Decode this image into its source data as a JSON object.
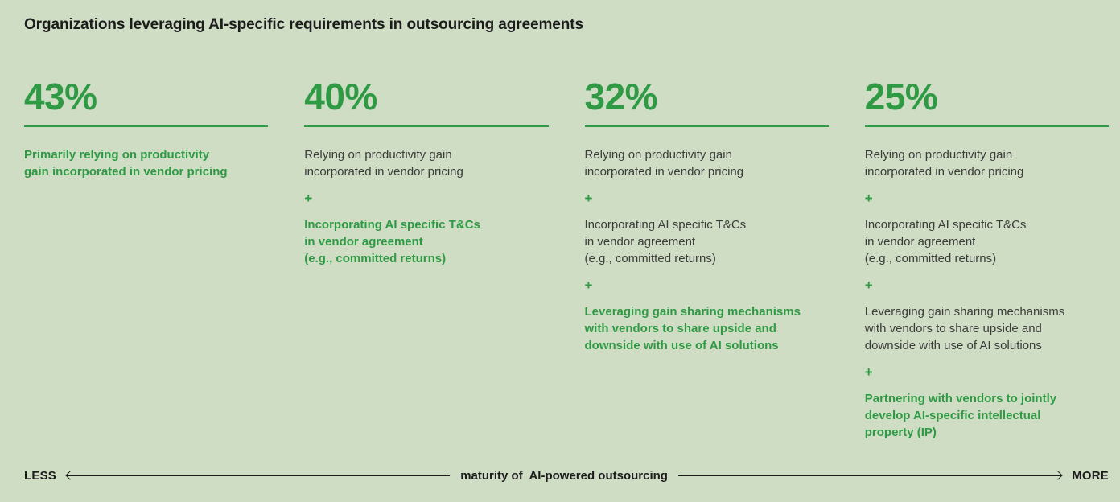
{
  "title": "Organizations leveraging AI-specific requirements in outsourcing agreements",
  "plus": "+",
  "colors": {
    "background": "#cfddc5",
    "accent_green": "#2f9a44",
    "text_dark": "#1c1c1c",
    "text_body": "#3c3c3a"
  },
  "columns": [
    {
      "percent": "43%",
      "items": [
        {
          "text": "Primarily relying on productivity\ngain incorporated in vendor pricing",
          "style": "green-bold"
        }
      ]
    },
    {
      "percent": "40%",
      "items": [
        {
          "text": "Relying on productivity gain\nincorporated in vendor pricing",
          "style": "plain"
        },
        {
          "text": "Incorporating AI specific T&Cs\nin vendor agreement\n(e.g., committed returns)",
          "style": "green-bold"
        }
      ]
    },
    {
      "percent": "32%",
      "items": [
        {
          "text": "Relying on productivity gain\nincorporated in vendor pricing",
          "style": "plain"
        },
        {
          "text": "Incorporating AI specific T&Cs\nin vendor agreement\n(e.g., committed returns)",
          "style": "plain"
        },
        {
          "text": "Leveraging gain sharing mechanisms\nwith vendors to share upside and\ndownside with use of AI solutions",
          "style": "green-bold"
        }
      ]
    },
    {
      "percent": "25%",
      "items": [
        {
          "text": "Relying on productivity gain\nincorporated in vendor pricing",
          "style": "plain"
        },
        {
          "text": "Incorporating AI specific T&Cs\nin vendor agreement\n(e.g., committed returns)",
          "style": "plain"
        },
        {
          "text": "Leveraging gain sharing mechanisms\nwith vendors to share upside and\ndownside with use of AI solutions",
          "style": "plain"
        },
        {
          "text": "Partnering with vendors to jointly\ndevelop AI-specific intellectual\nproperty (IP)",
          "style": "green-bold"
        }
      ]
    }
  ],
  "axis": {
    "less": "LESS",
    "label": "maturity of  AI-powered outsourcing",
    "more": "MORE"
  },
  "chart_data": {
    "type": "table",
    "title": "Organizations leveraging AI-specific requirements in outsourcing agreements",
    "values": [
      43,
      40,
      32,
      25
    ],
    "unit": "%",
    "xlabel": "maturity of AI-powered outsourcing",
    "x_axis_endpoints": [
      "LESS",
      "MORE"
    ],
    "groups": [
      {
        "value": 43,
        "practices": [
          "Primarily relying on productivity gain incorporated in vendor pricing"
        ],
        "highlighted_practice": "Primarily relying on productivity gain incorporated in vendor pricing"
      },
      {
        "value": 40,
        "practices": [
          "Relying on productivity gain incorporated in vendor pricing",
          "Incorporating AI specific T&Cs in vendor agreement (e.g., committed returns)"
        ],
        "highlighted_practice": "Incorporating AI specific T&Cs in vendor agreement (e.g., committed returns)"
      },
      {
        "value": 32,
        "practices": [
          "Relying on productivity gain incorporated in vendor pricing",
          "Incorporating AI specific T&Cs in vendor agreement (e.g., committed returns)",
          "Leveraging gain sharing mechanisms with vendors to share upside and downside with use of AI solutions"
        ],
        "highlighted_practice": "Leveraging gain sharing mechanisms with vendors to share upside and downside with use of AI solutions"
      },
      {
        "value": 25,
        "practices": [
          "Relying on productivity gain incorporated in vendor pricing",
          "Incorporating AI specific T&Cs in vendor agreement (e.g., committed returns)",
          "Leveraging gain sharing mechanisms with vendors to share upside and downside with use of AI solutions",
          "Partnering with vendors to jointly develop AI-specific intellectual property (IP)"
        ],
        "highlighted_practice": "Partnering with vendors to jointly develop AI-specific intellectual property (IP)"
      }
    ]
  }
}
